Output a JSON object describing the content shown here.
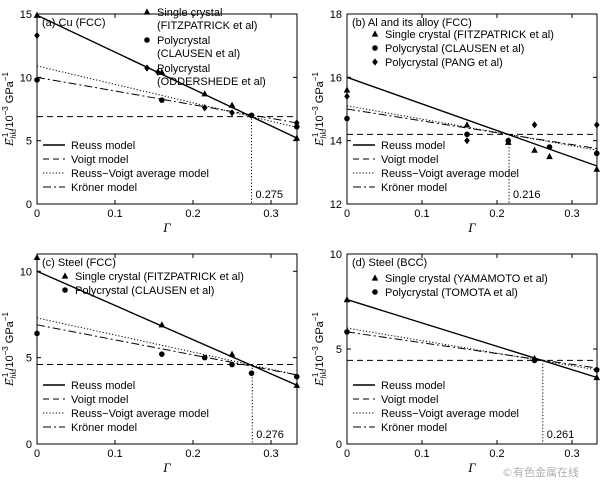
{
  "watermark": "©有色金属在线",
  "chart_data": [
    {
      "type": "line",
      "label": "(a) Cu (FCC)",
      "xlabel": "Γ",
      "ylabel": "E_hkl^-1/10^-3 GPa^-1",
      "xlim": [
        0,
        0.3333
      ],
      "ylim": [
        0,
        15
      ],
      "xticks": [
        "0",
        "0.1",
        "0.2",
        "0.3"
      ],
      "xtick_values": [
        0,
        0.1,
        0.2,
        0.3
      ],
      "yticks": [
        "0",
        "5",
        "10",
        "15"
      ],
      "ytick_values": [
        0,
        5,
        10,
        15
      ],
      "crossing_label": "0.275",
      "crossing_x": 0.275,
      "crossing_y": 7.0,
      "model_legend": [
        "Reuss model",
        "Voigt model",
        "Reuss−Voigt average model",
        "Kröner model"
      ],
      "series": [
        {
          "name": "Reuss model",
          "style": "solid",
          "x": [
            0,
            0.3333
          ],
          "y": [
            14.9,
            5.2
          ]
        },
        {
          "name": "Voigt model",
          "style": "dashed",
          "x": [
            0,
            0.3333
          ],
          "y": [
            6.9,
            6.9
          ]
        },
        {
          "name": "Reuss−Voigt average model",
          "style": "dotted",
          "x": [
            0,
            0.3333
          ],
          "y": [
            10.9,
            6.05
          ]
        },
        {
          "name": "Kröner model",
          "style": "dashdot",
          "x": [
            0,
            0.3333
          ],
          "y": [
            10.0,
            6.4
          ]
        }
      ],
      "points": [
        {
          "name": "Single crystal (FITZPATRICK et al)",
          "marker": "triangle",
          "x": [
            0,
            0.16,
            0.215,
            0.25,
            0.333
          ],
          "y": [
            14.9,
            10.4,
            8.7,
            7.8,
            5.2
          ]
        },
        {
          "name": "Polycrystal (CLAUSEN et al)",
          "marker": "circle",
          "x": [
            0,
            0.16,
            0.275,
            0.333
          ],
          "y": [
            9.8,
            8.2,
            7.0,
            6.1
          ]
        },
        {
          "name": "Polycrystal (ODDERSHEDE et al)",
          "marker": "diamond",
          "x": [
            0,
            0.155,
            0.215,
            0.25,
            0.333
          ],
          "y": [
            13.3,
            10.4,
            7.6,
            7.2,
            6.4
          ]
        }
      ]
    },
    {
      "type": "line",
      "label": "(b) Al and its alloy (FCC)",
      "xlabel": "Γ",
      "ylabel": "E_hkl^-1/10^-3 GPa^-1",
      "xlim": [
        0,
        0.3333
      ],
      "ylim": [
        12,
        18
      ],
      "xticks": [
        "0",
        "0.1",
        "0.2",
        "0.3"
      ],
      "xtick_values": [
        0,
        0.1,
        0.2,
        0.3
      ],
      "yticks": [
        "12",
        "14",
        "16",
        "18"
      ],
      "ytick_values": [
        12,
        14,
        16,
        18
      ],
      "crossing_label": "0.216",
      "crossing_x": 0.216,
      "crossing_y": 14.2,
      "model_legend": [
        "Reuss model",
        "Voigt model",
        "Reuss−Voigt average model",
        "Kröner model"
      ],
      "series": [
        {
          "name": "Reuss model",
          "style": "solid",
          "x": [
            0,
            0.3333
          ],
          "y": [
            16.0,
            13.2
          ]
        },
        {
          "name": "Voigt model",
          "style": "dashed",
          "x": [
            0,
            0.3333
          ],
          "y": [
            14.2,
            14.2
          ]
        },
        {
          "name": "Reuss−Voigt average model",
          "style": "dotted",
          "x": [
            0,
            0.3333
          ],
          "y": [
            15.1,
            13.7
          ]
        },
        {
          "name": "Kröner model",
          "style": "dashdot",
          "x": [
            0,
            0.3333
          ],
          "y": [
            15.0,
            13.75
          ]
        }
      ],
      "points": [
        {
          "name": "Single crystal (FITZPATRICK et al)",
          "marker": "triangle",
          "x": [
            0,
            0.16,
            0.215,
            0.25,
            0.27,
            0.333
          ],
          "y": [
            15.6,
            14.5,
            13.95,
            13.7,
            13.5,
            13.1
          ]
        },
        {
          "name": "Polycrystal (CLAUSEN et al)",
          "marker": "circle",
          "x": [
            0,
            0.16,
            0.215,
            0.27,
            0.333
          ],
          "y": [
            14.7,
            14.2,
            14.0,
            13.8,
            13.6
          ]
        },
        {
          "name": "Polycrystal (PANG et al)",
          "marker": "diamond",
          "x": [
            0,
            0.16,
            0.25,
            0.333
          ],
          "y": [
            15.4,
            14.0,
            14.5,
            14.5
          ]
        }
      ]
    },
    {
      "type": "line",
      "label": "(c) Steel (FCC)",
      "xlabel": "Γ",
      "ylabel": "E_hkl^-1/10^-3 GPa^-1",
      "xlim": [
        0,
        0.3333
      ],
      "ylim": [
        0,
        11
      ],
      "xticks": [
        "0",
        "0.1",
        "0.2",
        "0.3"
      ],
      "xtick_values": [
        0,
        0.1,
        0.2,
        0.3
      ],
      "yticks": [
        "0",
        "5",
        "10"
      ],
      "ytick_values": [
        0,
        5,
        10
      ],
      "crossing_label": "0.276",
      "crossing_x": 0.276,
      "crossing_y": 4.6,
      "model_legend": [
        "Reuss model",
        "Voigt model",
        "Reuss−Voigt average model",
        "Kröner model"
      ],
      "series": [
        {
          "name": "Reuss model",
          "style": "solid",
          "x": [
            0,
            0.3333
          ],
          "y": [
            10.0,
            3.4
          ]
        },
        {
          "name": "Voigt model",
          "style": "dashed",
          "x": [
            0,
            0.3333
          ],
          "y": [
            4.6,
            4.6
          ]
        },
        {
          "name": "Reuss−Voigt average model",
          "style": "dotted",
          "x": [
            0,
            0.3333
          ],
          "y": [
            7.3,
            4.0
          ]
        },
        {
          "name": "Kröner model",
          "style": "dashdot",
          "x": [
            0,
            0.3333
          ],
          "y": [
            6.9,
            4.0
          ]
        }
      ],
      "points": [
        {
          "name": "Single crystal (FITZPATRICK et al)",
          "marker": "triangle",
          "x": [
            0,
            0.16,
            0.25,
            0.333
          ],
          "y": [
            10.8,
            6.9,
            5.2,
            3.4
          ]
        },
        {
          "name": "Polycrystal (CLAUSEN et al)",
          "marker": "circle",
          "x": [
            0,
            0.16,
            0.215,
            0.25,
            0.275,
            0.333
          ],
          "y": [
            6.4,
            5.2,
            5.0,
            4.6,
            4.1,
            3.9
          ]
        }
      ]
    },
    {
      "type": "line",
      "label": "(d) Steel (BCC)",
      "xlabel": "Γ",
      "ylabel": "E_hkl^-1/10^-3 GPa^-1",
      "xlim": [
        0,
        0.3333
      ],
      "ylim": [
        0,
        10
      ],
      "xticks": [
        "0",
        "0.1",
        "0.2",
        "0.3"
      ],
      "xtick_values": [
        0,
        0.1,
        0.2,
        0.3
      ],
      "yticks": [
        "0",
        "5",
        "10"
      ],
      "ytick_values": [
        0,
        5,
        10
      ],
      "crossing_label": "0.261",
      "crossing_x": 0.261,
      "crossing_y": 4.4,
      "model_legend": [
        "Reuss model",
        "Voigt model",
        "Reuss−Voigt average model",
        "Kröner model"
      ],
      "series": [
        {
          "name": "Reuss model",
          "style": "solid",
          "x": [
            0,
            0.3333
          ],
          "y": [
            7.6,
            3.5
          ]
        },
        {
          "name": "Voigt model",
          "style": "dashed",
          "x": [
            0,
            0.3333
          ],
          "y": [
            4.4,
            4.4
          ]
        },
        {
          "name": "Reuss−Voigt average model",
          "style": "dotted",
          "x": [
            0,
            0.3333
          ],
          "y": [
            6.1,
            3.9
          ]
        },
        {
          "name": "Kröner model",
          "style": "dashdot",
          "x": [
            0,
            0.3333
          ],
          "y": [
            5.9,
            4.0
          ]
        }
      ],
      "points": [
        {
          "name": "Single crystal (YAMAMOTO et al)",
          "marker": "triangle",
          "x": [
            0,
            0.25,
            0.333
          ],
          "y": [
            7.6,
            4.5,
            3.5
          ]
        },
        {
          "name": "Polycrystal (TOMOTA et al)",
          "marker": "circle",
          "x": [
            0,
            0.25,
            0.333
          ],
          "y": [
            5.9,
            4.4,
            3.9
          ]
        }
      ]
    }
  ]
}
